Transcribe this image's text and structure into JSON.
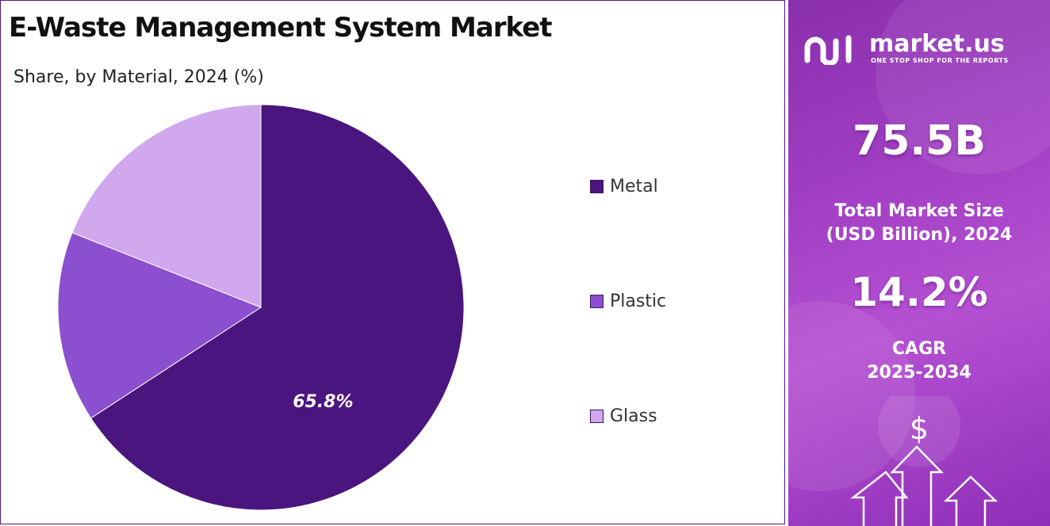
{
  "left": {
    "title": "E-Waste Management System Market",
    "subtitle": "Share, by Material, 2024 (%)"
  },
  "chart_data": {
    "type": "pie",
    "title": "E-Waste Management System Market",
    "subtitle": "Share, by Material, 2024 (%)",
    "categories": [
      "Metal",
      "Plastic",
      "Glass"
    ],
    "values": [
      65.8,
      15.2,
      19.0
    ],
    "data_labels": [
      "65.8%",
      "",
      ""
    ],
    "colors": [
      "#4b157f",
      "#8c4fcf",
      "#d1a7ee"
    ],
    "legend_position": "right"
  },
  "brand": {
    "name": "market.us",
    "tagline": "ONE STOP SHOP FOR THE REPORTS"
  },
  "stats": {
    "market_size_value": "75.5B",
    "market_size_label_line1": "Total Market Size",
    "market_size_label_line2": "(USD Billion), 2024",
    "cagr_value": "14.2%",
    "cagr_label_line1": "CAGR",
    "cagr_label_line2": "2025-2034"
  },
  "icons": [
    "dollar-icon",
    "arrow-up-icon",
    "logo-icon"
  ]
}
